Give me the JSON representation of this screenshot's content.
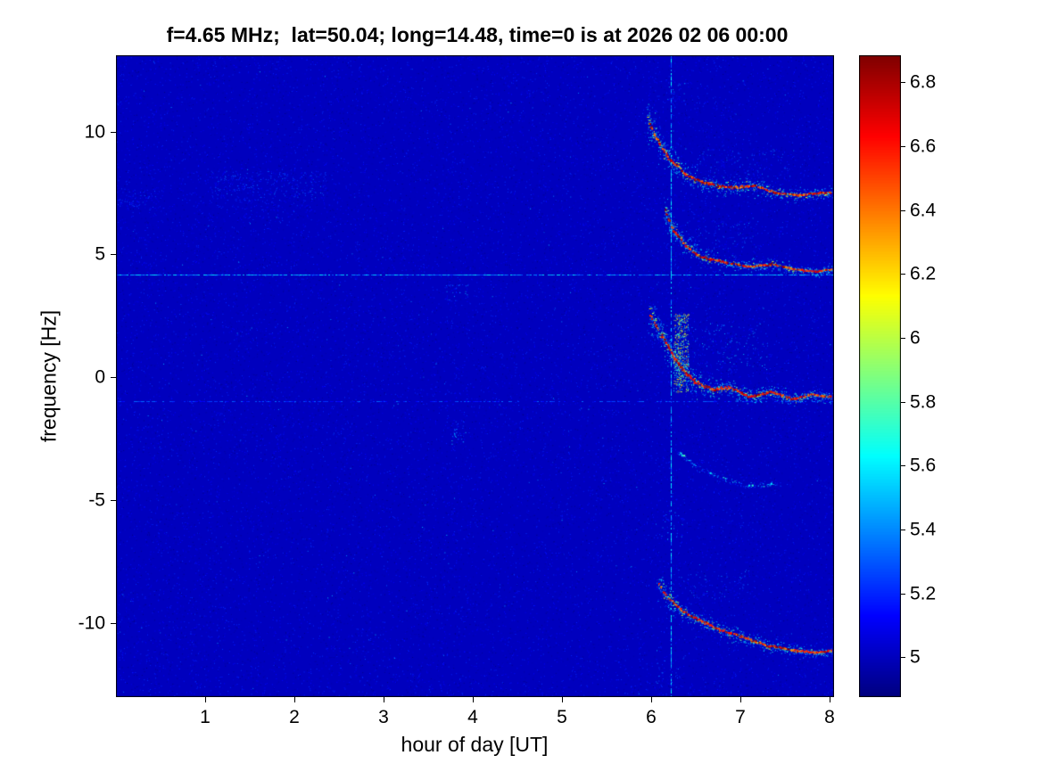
{
  "chart_data": {
    "type": "heatmap",
    "title": "f=4.65 MHz;  lat=50.04; long=14.48, time=0 is at 2026 02 06 00:00",
    "xlabel": "hour of day [UT]",
    "ylabel": "frequency [Hz]",
    "xlim": [
      0,
      8.05
    ],
    "ylim": [
      -13,
      13.1
    ],
    "x_ticks": [
      1,
      2,
      3,
      4,
      5,
      6,
      7,
      8
    ],
    "y_ticks": [
      -10,
      -5,
      0,
      5,
      10
    ],
    "colormap": "jet",
    "grid": false,
    "background_value": 5.0,
    "colorbar": {
      "range": [
        4.875,
        6.885
      ],
      "ticks": [
        5,
        5.2,
        5.4,
        5.6,
        5.8,
        6,
        6.2,
        6.4,
        6.6,
        6.8
      ],
      "position": "right"
    },
    "faint_lines": {
      "horizontal": [
        {
          "y": 4.2,
          "v": [
            5.2,
            5.6
          ],
          "prob": 0.85
        },
        {
          "y": -0.95,
          "v": [
            5.1,
            5.35
          ],
          "prob": 0.55
        }
      ],
      "vertical": [
        {
          "x": 6.22,
          "v": [
            5.25,
            5.65
          ],
          "prob": 0.7
        }
      ]
    },
    "speckle_patches": [
      {
        "x": [
          1.05,
          2.35
        ],
        "y": [
          7.2,
          8.4
        ],
        "count": 300,
        "v": [
          5.05,
          5.35
        ]
      },
      {
        "x": [
          0.02,
          0.55
        ],
        "y": [
          6.8,
          7.7
        ],
        "count": 90,
        "v": [
          5.05,
          5.3
        ]
      },
      {
        "x": [
          1.4,
          2.2
        ],
        "y": [
          6.5,
          7.2
        ],
        "count": 70,
        "v": [
          5.05,
          5.25
        ]
      },
      {
        "x": [
          3.7,
          3.95
        ],
        "y": [
          3.1,
          3.8
        ],
        "count": 30,
        "v": [
          5.1,
          5.45
        ]
      },
      {
        "x": [
          3.75,
          3.92
        ],
        "y": [
          -2.7,
          -1.7
        ],
        "count": 35,
        "v": [
          5.15,
          5.55
        ]
      },
      {
        "x": [
          6.18,
          6.38
        ],
        "y": [
          11.0,
          12.0
        ],
        "count": 25,
        "v": [
          5.1,
          5.5
        ]
      },
      {
        "x": [
          6.25,
          6.42
        ],
        "y": [
          -0.6,
          2.6
        ],
        "count": 450,
        "v": [
          5.3,
          6.35
        ]
      },
      {
        "x": [
          6.45,
          7.3
        ],
        "y": [
          0.3,
          2.2
        ],
        "count": 150,
        "v": [
          5.1,
          5.5
        ]
      },
      {
        "x": [
          6.5,
          7.6
        ],
        "y": [
          8.1,
          9.3
        ],
        "count": 120,
        "v": [
          5.05,
          5.4
        ]
      },
      {
        "x": [
          6.4,
          7.2
        ],
        "y": [
          5.2,
          6.5
        ],
        "count": 100,
        "v": [
          5.05,
          5.4
        ]
      },
      {
        "x": [
          6.3,
          7.1
        ],
        "y": [
          -9.0,
          -7.8
        ],
        "count": 90,
        "v": [
          5.05,
          5.4
        ]
      },
      {
        "x": [
          6.1,
          6.35
        ],
        "y": [
          -6.6,
          -5.4
        ],
        "count": 30,
        "v": [
          5.1,
          5.45
        ]
      },
      {
        "x": [
          6.05,
          6.3
        ],
        "y": [
          -12.6,
          -11.4
        ],
        "count": 25,
        "v": [
          5.1,
          5.4
        ]
      }
    ],
    "traces": [
      {
        "name": "upper-echo-trace",
        "halo": [
          5.15,
          5.7
        ],
        "mid": [
          5.6,
          6.2
        ],
        "core": [
          6.35,
          6.9
        ],
        "density": 1,
        "points": [
          [
            5.95,
            10.6,
            1.3,
            0.3
          ],
          [
            6.05,
            9.8,
            1.1,
            0.55
          ],
          [
            6.2,
            8.9,
            0.9,
            0.75
          ],
          [
            6.4,
            8.2,
            0.7,
            0.9
          ],
          [
            6.6,
            7.9,
            0.6,
            0.95
          ],
          [
            6.9,
            7.7,
            0.7,
            0.9
          ],
          [
            7.15,
            7.8,
            0.6,
            0.85
          ],
          [
            7.4,
            7.5,
            0.45,
            0.9
          ],
          [
            7.65,
            7.4,
            0.4,
            0.88
          ],
          [
            7.9,
            7.5,
            0.35,
            0.92
          ],
          [
            8.03,
            7.5,
            0.3,
            0.9
          ]
        ]
      },
      {
        "name": "second-echo-trace",
        "halo": [
          5.15,
          5.7
        ],
        "mid": [
          5.6,
          6.2
        ],
        "core": [
          6.35,
          6.9
        ],
        "density": 1,
        "points": [
          [
            6.15,
            6.9,
            0.8,
            0.3
          ],
          [
            6.25,
            6.0,
            0.7,
            0.6
          ],
          [
            6.4,
            5.3,
            0.6,
            0.85
          ],
          [
            6.55,
            4.9,
            0.5,
            0.95
          ],
          [
            6.8,
            4.7,
            0.45,
            0.9
          ],
          [
            7.1,
            4.5,
            0.4,
            0.85
          ],
          [
            7.35,
            4.6,
            0.45,
            0.8
          ],
          [
            7.6,
            4.4,
            0.35,
            0.85
          ],
          [
            7.85,
            4.3,
            0.3,
            0.85
          ],
          [
            8.03,
            4.4,
            0.3,
            0.8
          ]
        ]
      },
      {
        "name": "main-doppler-trace",
        "halo": [
          5.15,
          5.75
        ],
        "mid": [
          5.65,
          6.25
        ],
        "core": [
          6.4,
          6.9
        ],
        "density": 1.2,
        "points": [
          [
            5.98,
            2.6,
            1.2,
            0.3
          ],
          [
            6.1,
            1.8,
            1.1,
            0.6
          ],
          [
            6.25,
            0.9,
            1.0,
            0.85
          ],
          [
            6.35,
            0.3,
            0.9,
            0.95
          ],
          [
            6.5,
            -0.2,
            0.8,
            1.0
          ],
          [
            6.7,
            -0.5,
            0.6,
            0.95
          ],
          [
            6.9,
            -0.4,
            0.55,
            0.9
          ],
          [
            7.1,
            -0.8,
            0.5,
            0.95
          ],
          [
            7.35,
            -0.6,
            0.45,
            0.9
          ],
          [
            7.6,
            -0.9,
            0.4,
            0.9
          ],
          [
            7.8,
            -0.7,
            0.4,
            0.85
          ],
          [
            8.03,
            -0.8,
            0.35,
            0.9
          ]
        ]
      },
      {
        "name": "faint-lower-trace",
        "halo": [
          5.15,
          5.45
        ],
        "mid": [
          5.4,
          5.7
        ],
        "core": [
          5.5,
          5.8
        ],
        "density": 0.35,
        "points": [
          [
            6.3,
            -3.0,
            0.25,
            0.05
          ],
          [
            6.5,
            -3.6,
            0.2,
            0.05
          ],
          [
            6.8,
            -4.1,
            0.2,
            0.05
          ],
          [
            7.1,
            -4.4,
            0.2,
            0.05
          ],
          [
            7.45,
            -4.3,
            0.15,
            0.05
          ]
        ]
      },
      {
        "name": "bottom-echo-trace",
        "halo": [
          5.15,
          5.7
        ],
        "mid": [
          5.6,
          6.2
        ],
        "core": [
          6.35,
          6.9
        ],
        "density": 1,
        "points": [
          [
            6.08,
            -8.4,
            0.9,
            0.3
          ],
          [
            6.2,
            -9.0,
            0.8,
            0.6
          ],
          [
            6.35,
            -9.5,
            0.7,
            0.85
          ],
          [
            6.55,
            -9.9,
            0.6,
            0.9
          ],
          [
            6.8,
            -10.3,
            0.55,
            0.9
          ],
          [
            7.05,
            -10.6,
            0.5,
            0.88
          ],
          [
            7.3,
            -10.9,
            0.45,
            0.85
          ],
          [
            7.6,
            -11.1,
            0.4,
            0.88
          ],
          [
            7.85,
            -11.2,
            0.35,
            0.9
          ],
          [
            8.03,
            -11.1,
            0.3,
            0.85
          ]
        ]
      }
    ]
  },
  "colors": {
    "figure_background": "#ffffff",
    "axis_line": "#000000",
    "text": "#000000"
  }
}
